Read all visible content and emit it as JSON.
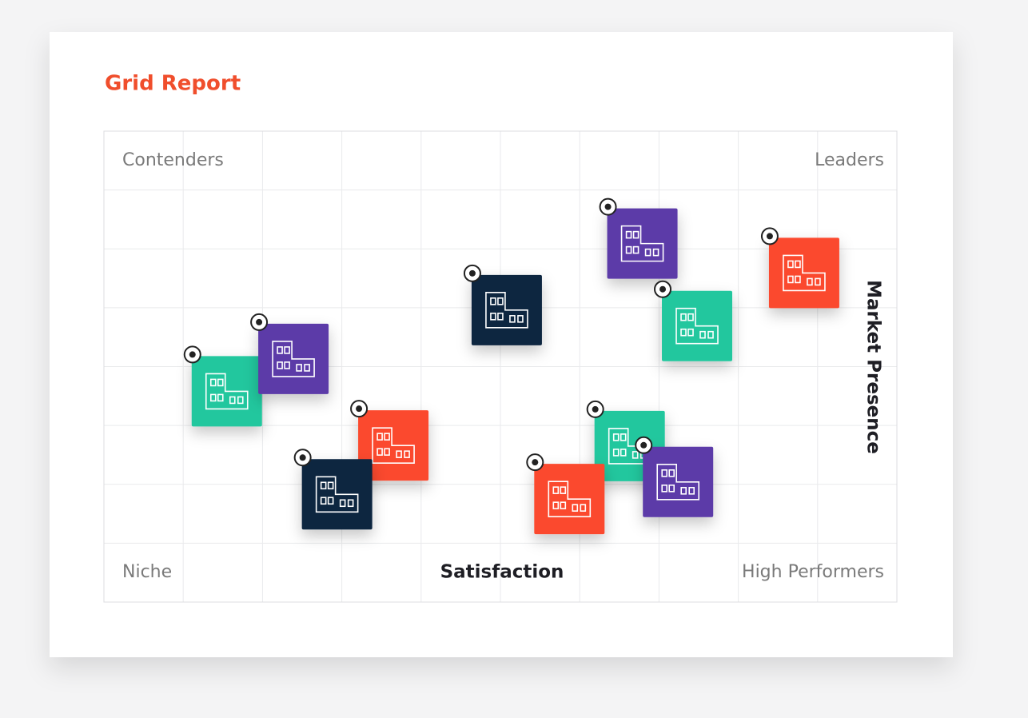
{
  "chart_data": {
    "type": "scatter",
    "title": "Grid Report",
    "x_label": "Satisfaction",
    "y_label": "Market Presence",
    "quadrants": {
      "top_left": "Contenders",
      "top_right": "Leaders",
      "bottom_left": "Niche",
      "bottom_right": "High Performers"
    },
    "xlim": [
      0,
      10
    ],
    "ylim": [
      0,
      8
    ],
    "x": [
      1.55,
      2.39,
      3.65,
      2.94,
      5.08,
      6.79,
      8.83,
      7.48,
      6.63,
      5.87,
      7.24
    ],
    "y": [
      3.58,
      4.13,
      2.66,
      1.83,
      4.96,
      6.09,
      5.59,
      4.69,
      2.65,
      1.75,
      2.04
    ],
    "colors": [
      "#22c79e",
      "#5b3aa8",
      "#fb4a2d",
      "#0b2540",
      "#0b2540",
      "#5b3aa8",
      "#fb4a2d",
      "#22c79e",
      "#22c79e",
      "#fb4a2d",
      "#5b3aa8"
    ],
    "grid": true
  }
}
